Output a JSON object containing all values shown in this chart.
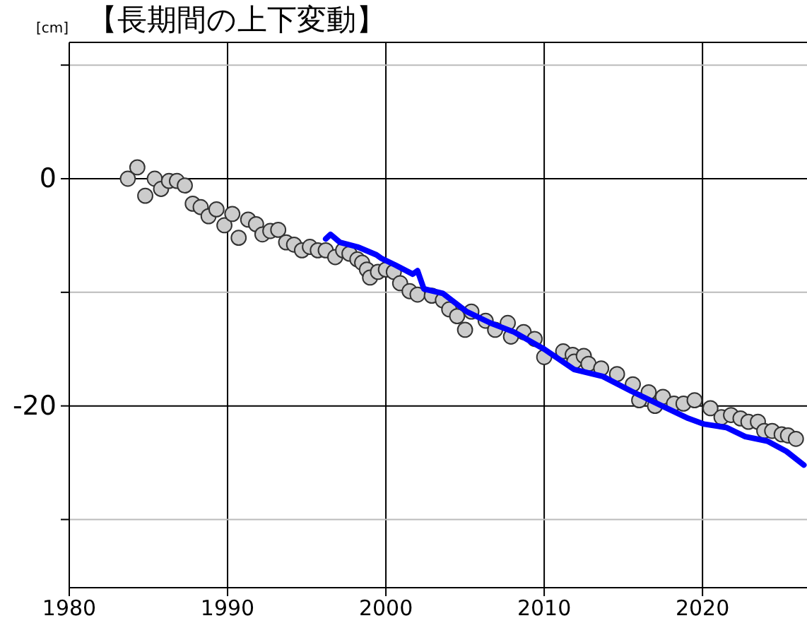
{
  "chart_data": {
    "type": "line",
    "title": "【長期間の上下変動】",
    "ylabel": "[cm]",
    "xlim": [
      1980,
      2026.6
    ],
    "ylim": [
      -36,
      12
    ],
    "xticks": [
      1980,
      1990,
      2000,
      2010,
      2020
    ],
    "yticks": [
      {
        "value": 10,
        "label": null
      },
      0,
      {
        "value": -10,
        "label": null
      },
      -20,
      {
        "value": -30,
        "label": null
      }
    ],
    "grid": true,
    "series": [
      {
        "type": "scatter",
        "marker": "circle",
        "color": "#cccccc",
        "x": [
          1983.7,
          1984.3,
          1984.8,
          1985.4,
          1985.8,
          1986.3,
          1986.8,
          1987.3,
          1987.8,
          1988.3,
          1988.8,
          1989.3,
          1989.8,
          1990.3,
          1990.7,
          1991.3,
          1991.8,
          1992.2,
          1992.7,
          1993.2,
          1993.7,
          1994.2,
          1994.7,
          1995.2,
          1995.7,
          1996.2,
          1996.8,
          1997.3,
          1997.7,
          1998.2,
          1998.5,
          1998.8,
          1999.0,
          1999.5,
          2000.0,
          2000.5,
          2000.9,
          2001.5,
          2002.0,
          2002.9,
          2003.6,
          2004.0,
          2004.5,
          2005.0,
          2005.4,
          2006.3,
          2006.9,
          2007.7,
          2007.9,
          2008.7,
          2009.4,
          2010.0,
          2011.2,
          2011.8,
          2011.9,
          2012.5,
          2012.8,
          2013.6,
          2014.6,
          2015.6,
          2016.0,
          2016.6,
          2017.0,
          2017.5,
          2018.2,
          2018.8,
          2019.5,
          2020.5,
          2021.2,
          2021.8,
          2022.4,
          2022.9,
          2023.5,
          2023.9,
          2024.4,
          2025.0,
          2025.4,
          2025.9
        ],
        "values": [
          0,
          1.0,
          -1.5,
          0,
          -0.9,
          -0.2,
          -0.2,
          -0.6,
          -2.2,
          -2.5,
          -3.3,
          -2.7,
          -4.1,
          -3.1,
          -5.2,
          -3.6,
          -4.0,
          -4.9,
          -4.6,
          -4.5,
          -5.6,
          -5.8,
          -6.3,
          -6.0,
          -6.3,
          -6.3,
          -6.9,
          -6.3,
          -6.6,
          -7.1,
          -7.4,
          -8.0,
          -8.7,
          -8.2,
          -8.0,
          -8.2,
          -9.2,
          -9.9,
          -10.2,
          -10.3,
          -10.7,
          -11.5,
          -12.1,
          -13.3,
          -11.7,
          -12.5,
          -13.3,
          -12.7,
          -13.9,
          -13.5,
          -14.1,
          -15.7,
          -15.2,
          -15.5,
          -16.1,
          -15.6,
          -16.3,
          -16.7,
          -17.2,
          -18.1,
          -19.5,
          -18.8,
          -20.0,
          -19.2,
          -19.8,
          -19.8,
          -19.5,
          -20.2,
          -21.0,
          -20.8,
          -21.1,
          -21.4,
          -21.4,
          -22.2,
          -22.2,
          -22.5,
          -22.6,
          -22.9
        ]
      },
      {
        "marker": "none",
        "color": "#0000ff",
        "x": [
          1996.2,
          1996.5,
          1997.1,
          1998.2,
          1999.4,
          1999.7,
          2000.6,
          2001.7,
          2002.0,
          2002.4,
          2003.6,
          2005.1,
          2006.6,
          2008.1,
          2010.0,
          2011.9,
          2013.7,
          2015.5,
          2017.3,
          2019.1,
          2020.1,
          2021.5,
          2022.7,
          2024.1,
          2025.3,
          2026.4
        ],
        "values": [
          -5.3,
          -4.9,
          -5.6,
          -6.0,
          -6.7,
          -7.0,
          -7.6,
          -8.4,
          -8.1,
          -9.7,
          -10.1,
          -11.7,
          -12.7,
          -13.5,
          -15.0,
          -16.8,
          -17.4,
          -18.7,
          -19.9,
          -21.1,
          -21.6,
          -21.9,
          -22.7,
          -23.1,
          -24.0,
          -25.2
        ]
      }
    ]
  }
}
